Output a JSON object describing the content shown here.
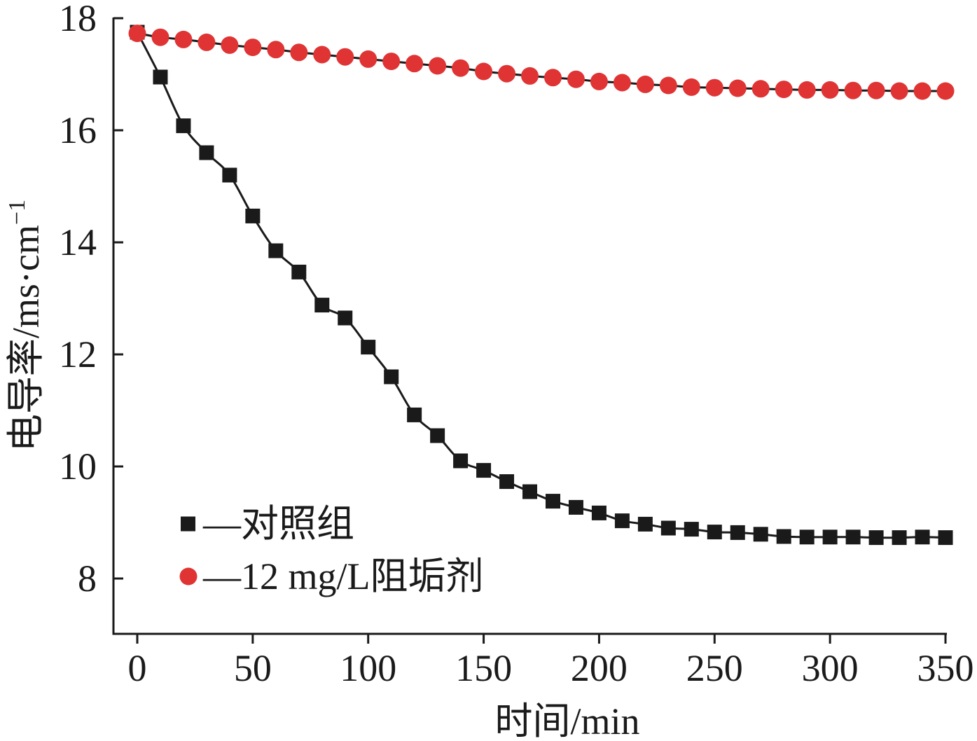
{
  "chart_data": {
    "type": "line",
    "xlabel": "时间/min",
    "ylabel": "电导率/ms·cm",
    "ylabel_superscript": "−1",
    "xlim": [
      -10,
      350
    ],
    "ylim": [
      7,
      18
    ],
    "xticks": [
      0,
      50,
      100,
      150,
      200,
      250,
      300,
      350
    ],
    "yticks": [
      8,
      10,
      12,
      14,
      16,
      18
    ],
    "x": [
      0,
      10,
      20,
      30,
      40,
      50,
      60,
      70,
      80,
      90,
      100,
      110,
      120,
      130,
      140,
      150,
      160,
      170,
      180,
      190,
      200,
      210,
      220,
      230,
      240,
      250,
      260,
      270,
      280,
      290,
      300,
      310,
      320,
      330,
      340,
      350
    ],
    "legend_position": "bottom-left",
    "grid": false,
    "series": [
      {
        "name": "—对照组",
        "marker": "square",
        "color": "#1a1a1a",
        "line_color": "#1a1a1a",
        "values": [
          17.75,
          16.95,
          16.08,
          15.6,
          15.2,
          14.47,
          13.85,
          13.47,
          12.88,
          12.65,
          12.13,
          11.6,
          10.92,
          10.55,
          10.1,
          9.93,
          9.73,
          9.55,
          9.38,
          9.27,
          9.17,
          9.03,
          8.97,
          8.9,
          8.88,
          8.83,
          8.82,
          8.79,
          8.75,
          8.74,
          8.74,
          8.74,
          8.73,
          8.73,
          8.74,
          8.73
        ]
      },
      {
        "name": "—12 mg/L阻垢剂",
        "marker": "circle",
        "color": "#e03434",
        "line_color": "#1a1a1a",
        "values": [
          17.73,
          17.66,
          17.62,
          17.57,
          17.52,
          17.48,
          17.44,
          17.39,
          17.35,
          17.31,
          17.27,
          17.23,
          17.19,
          17.15,
          17.11,
          17.05,
          17.01,
          16.97,
          16.94,
          16.91,
          16.87,
          16.85,
          16.82,
          16.8,
          16.77,
          16.76,
          16.75,
          16.74,
          16.73,
          16.72,
          16.72,
          16.71,
          16.71,
          16.7,
          16.7,
          16.7
        ]
      }
    ]
  }
}
